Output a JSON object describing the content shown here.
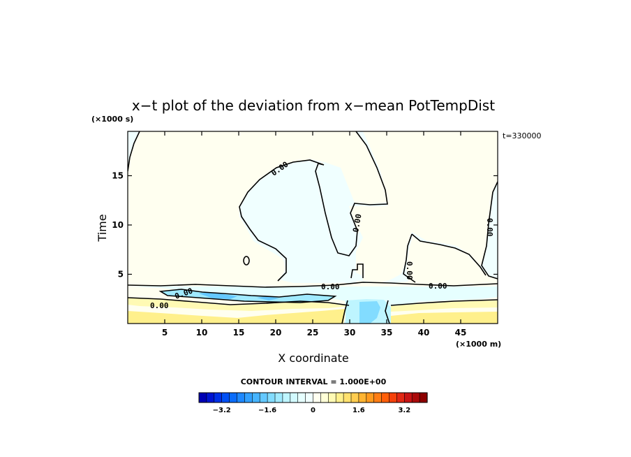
{
  "chart_data": {
    "type": "heatmap",
    "title": "x−t plot of the deviation from x−mean PotTempDist",
    "xlabel": "X coordinate",
    "ylabel": "Time",
    "x_unit": "(×1000 m)",
    "y_unit": "(×1000 s)",
    "time_stamp": "t=330000",
    "xlim": [
      0,
      50
    ],
    "ylim": [
      0,
      19.5
    ],
    "x_ticks": [
      5,
      10,
      15,
      20,
      25,
      30,
      35,
      40,
      45
    ],
    "y_ticks": [
      5,
      10,
      15
    ],
    "x_tick_labels": [
      "5",
      "10",
      "15",
      "20",
      "25",
      "30",
      "35",
      "40",
      "45"
    ],
    "y_tick_labels": [
      "5",
      "10",
      "15"
    ],
    "contour_interval_text": "CONTOUR INTERVAL = 1.000E+00",
    "contour_label_text": "0.00",
    "colorbar": {
      "range": [
        -4.0,
        4.0
      ],
      "tick_values": [
        -3.2,
        -1.6,
        0,
        1.6,
        3.2
      ],
      "tick_labels": [
        "−3.2",
        "−1.6",
        "0",
        "1.6",
        "3.2"
      ],
      "colors": [
        "#0000b4",
        "#0014d2",
        "#0030e6",
        "#0050f5",
        "#0a6cfa",
        "#1e88ff",
        "#32a0ff",
        "#46b4ff",
        "#64c8ff",
        "#82dcff",
        "#a0eaff",
        "#bef5ff",
        "#d2faff",
        "#e6ffff",
        "#f0ffff",
        "#fffff0",
        "#ffffd7",
        "#fffab4",
        "#fff08c",
        "#ffe16e",
        "#ffcd50",
        "#ffb432",
        "#ff9a1e",
        "#ff7d14",
        "#ff5f0a",
        "#f5410a",
        "#e12814",
        "#c81414",
        "#aa0a0a",
        "#8c0000"
      ]
    },
    "fields_description_values": {
      "positive_background": 0.2,
      "negative_background": -0.2,
      "band_extremes": [
        -1.6,
        1.2
      ]
    }
  }
}
